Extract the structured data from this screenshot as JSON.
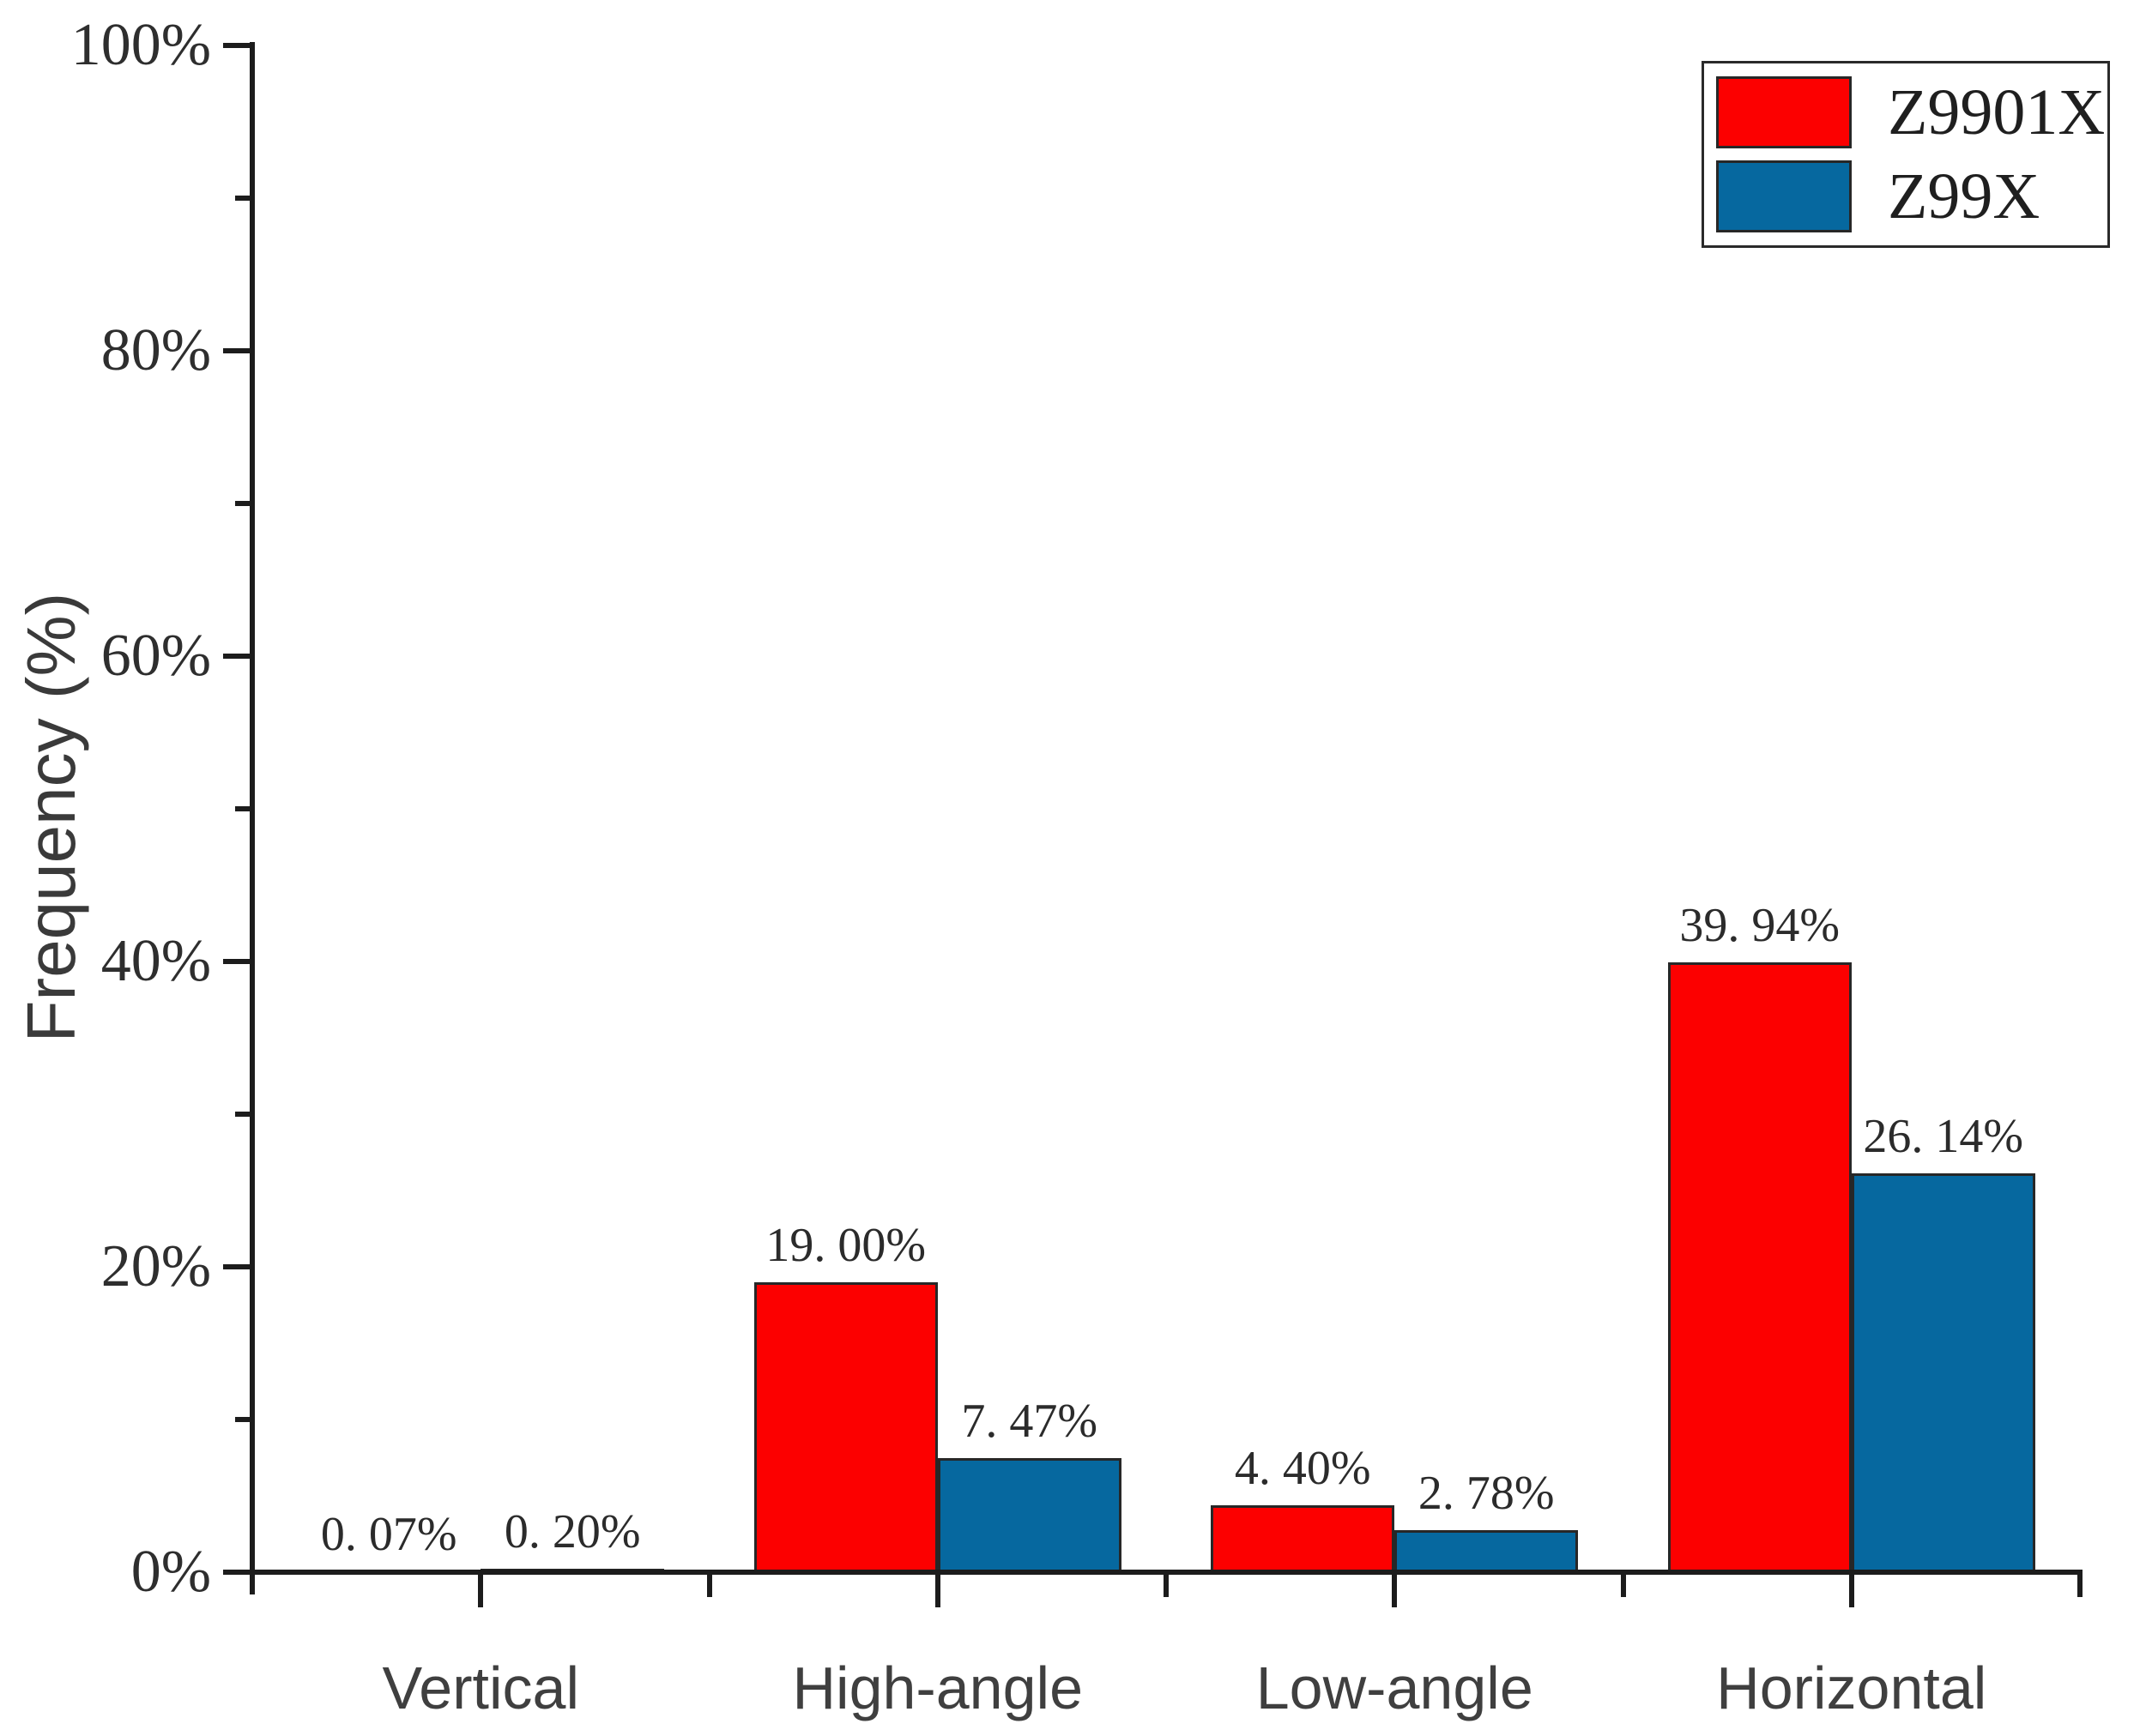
{
  "chart_data": {
    "type": "bar",
    "title": "",
    "categories": [
      "Vertical",
      "High-angle",
      "Low-angle",
      "Horizontal"
    ],
    "series": [
      {
        "name": "Z9901X",
        "color": "#fc0000",
        "values": [
          0.07,
          19.0,
          4.4,
          39.94
        ],
        "value_labels": [
          "0. 07%",
          "19. 00%",
          "4. 40%",
          "39. 94%"
        ]
      },
      {
        "name": "Z99X",
        "color": "#06689f",
        "values": [
          0.2,
          7.47,
          2.78,
          26.14
        ],
        "value_labels": [
          "0. 20%",
          "7. 47%",
          "2. 78%",
          "26. 14%"
        ]
      }
    ],
    "xlabel": "",
    "ylabel": "Frequency (%)",
    "ylim": [
      0,
      100
    ],
    "y_major_ticks": [
      0,
      20,
      40,
      60,
      80,
      100
    ],
    "y_major_tick_labels": [
      "0%",
      "20%",
      "40%",
      "60%",
      "80%",
      "100%"
    ],
    "y_minor_ticks": [
      10,
      30,
      50,
      70,
      90
    ],
    "grid": false,
    "bar_grouping": "grouped-touching",
    "legend_position": "top-right",
    "legend": [
      {
        "label": "Z9901X",
        "color": "#fc0000"
      },
      {
        "label": "Z99X",
        "color": "#06689f"
      }
    ],
    "axis_color": "#1c1c1c"
  }
}
